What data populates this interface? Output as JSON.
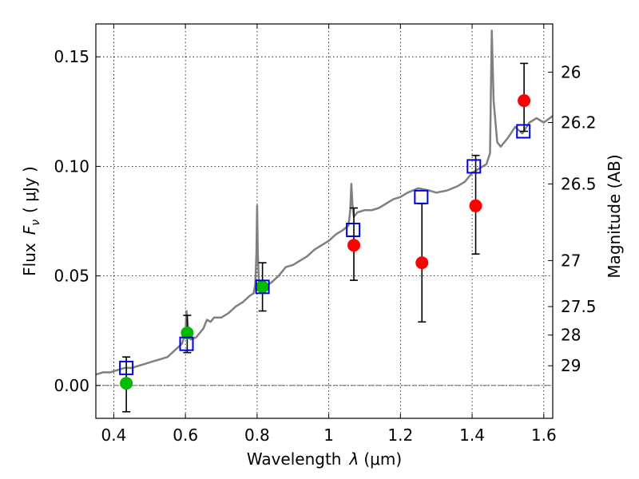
{
  "chart_data": {
    "type": "scatter",
    "xlabel_prefix": "Wavelength",
    "xlabel_symbol": "λ",
    "xlabel_unit": "(μm)",
    "ylabel_prefix": "Flux",
    "ylabel_symbol": "F",
    "ylabel_sub": "ν",
    "ylabel_unit": "( μJy )",
    "y2label": "Magnitude (AB)",
    "xlim": [
      0.35,
      1.625
    ],
    "ylim": [
      -0.015,
      0.165
    ],
    "grid": true,
    "x_ticks": [
      {
        "value": 0.4,
        "label": "0.4"
      },
      {
        "value": 0.6,
        "label": "0.6"
      },
      {
        "value": 0.8,
        "label": "0.8"
      },
      {
        "value": 1.0,
        "label": "1"
      },
      {
        "value": 1.2,
        "label": "1.2"
      },
      {
        "value": 1.4,
        "label": "1.4"
      },
      {
        "value": 1.6,
        "label": "1.6"
      }
    ],
    "y_ticks": [
      {
        "value": 0.0,
        "label": "0.00"
      },
      {
        "value": 0.05,
        "label": "0.05"
      },
      {
        "value": 0.1,
        "label": "0.10"
      },
      {
        "value": 0.15,
        "label": "0.15"
      }
    ],
    "y2_ticks": [
      {
        "flux": 0.143,
        "label": "26"
      },
      {
        "flux": 0.12,
        "label": "26.2"
      },
      {
        "flux": 0.092,
        "label": "26.5"
      },
      {
        "flux": 0.057,
        "label": "27"
      },
      {
        "flux": 0.036,
        "label": "27.5"
      },
      {
        "flux": 0.023,
        "label": "28"
      },
      {
        "flux": 0.009,
        "label": "29"
      }
    ],
    "series": [
      {
        "name": "model spectrum",
        "kind": "line",
        "color": "#808080",
        "x": [
          0.35,
          0.37,
          0.39,
          0.41,
          0.43,
          0.45,
          0.47,
          0.49,
          0.51,
          0.53,
          0.55,
          0.57,
          0.59,
          0.6,
          0.603,
          0.608,
          0.615,
          0.63,
          0.65,
          0.66,
          0.67,
          0.68,
          0.7,
          0.72,
          0.74,
          0.76,
          0.78,
          0.79,
          0.795,
          0.798,
          0.8,
          0.802,
          0.805,
          0.81,
          0.82,
          0.84,
          0.86,
          0.88,
          0.9,
          0.92,
          0.94,
          0.96,
          0.98,
          1.0,
          1.02,
          1.04,
          1.055,
          1.06,
          1.063,
          1.066,
          1.07,
          1.08,
          1.1,
          1.12,
          1.14,
          1.16,
          1.18,
          1.2,
          1.22,
          1.25,
          1.28,
          1.3,
          1.33,
          1.36,
          1.38,
          1.4,
          1.42,
          1.44,
          1.45,
          1.452,
          1.455,
          1.46,
          1.47,
          1.48,
          1.5,
          1.52,
          1.54,
          1.56,
          1.58,
          1.6,
          1.625
        ],
        "y": [
          0.005,
          0.006,
          0.006,
          0.007,
          0.008,
          0.008,
          0.009,
          0.01,
          0.011,
          0.012,
          0.013,
          0.016,
          0.019,
          0.024,
          0.034,
          0.026,
          0.021,
          0.022,
          0.026,
          0.03,
          0.029,
          0.031,
          0.031,
          0.033,
          0.036,
          0.038,
          0.041,
          0.042,
          0.046,
          0.06,
          0.082,
          0.06,
          0.048,
          0.044,
          0.045,
          0.047,
          0.05,
          0.054,
          0.055,
          0.057,
          0.059,
          0.062,
          0.064,
          0.066,
          0.069,
          0.071,
          0.073,
          0.08,
          0.092,
          0.083,
          0.077,
          0.079,
          0.08,
          0.08,
          0.081,
          0.083,
          0.085,
          0.086,
          0.088,
          0.09,
          0.089,
          0.088,
          0.089,
          0.091,
          0.093,
          0.097,
          0.099,
          0.101,
          0.106,
          0.13,
          0.162,
          0.13,
          0.111,
          0.109,
          0.113,
          0.118,
          0.115,
          0.12,
          0.122,
          0.12,
          0.123
        ]
      },
      {
        "name": "green observations",
        "kind": "points",
        "color": "#00bb00",
        "points": [
          {
            "x": 0.435,
            "y": 0.001,
            "err_lo": -0.012,
            "err_hi": 0.013
          },
          {
            "x": 0.605,
            "y": 0.024,
            "err_lo": 0.015,
            "err_hi": 0.032
          },
          {
            "x": 0.815,
            "y": 0.045,
            "err_lo": 0.034,
            "err_hi": 0.056
          }
        ]
      },
      {
        "name": "red observations",
        "kind": "points",
        "color": "#ff0000",
        "points": [
          {
            "x": 1.07,
            "y": 0.064,
            "err_lo": 0.048,
            "err_hi": 0.081
          },
          {
            "x": 1.26,
            "y": 0.056,
            "err_lo": 0.029,
            "err_hi": 0.083
          },
          {
            "x": 1.41,
            "y": 0.082,
            "err_lo": 0.06,
            "err_hi": 0.105
          },
          {
            "x": 1.545,
            "y": 0.13,
            "err_lo": 0.116,
            "err_hi": 0.147
          }
        ]
      },
      {
        "name": "model photometry",
        "kind": "squares",
        "color": "#0000dd",
        "points": [
          {
            "x": 0.435,
            "y": 0.008
          },
          {
            "x": 0.603,
            "y": 0.019
          },
          {
            "x": 0.815,
            "y": 0.045
          },
          {
            "x": 1.068,
            "y": 0.071
          },
          {
            "x": 1.258,
            "y": 0.086
          },
          {
            "x": 1.405,
            "y": 0.1
          },
          {
            "x": 1.543,
            "y": 0.116
          }
        ]
      }
    ]
  }
}
